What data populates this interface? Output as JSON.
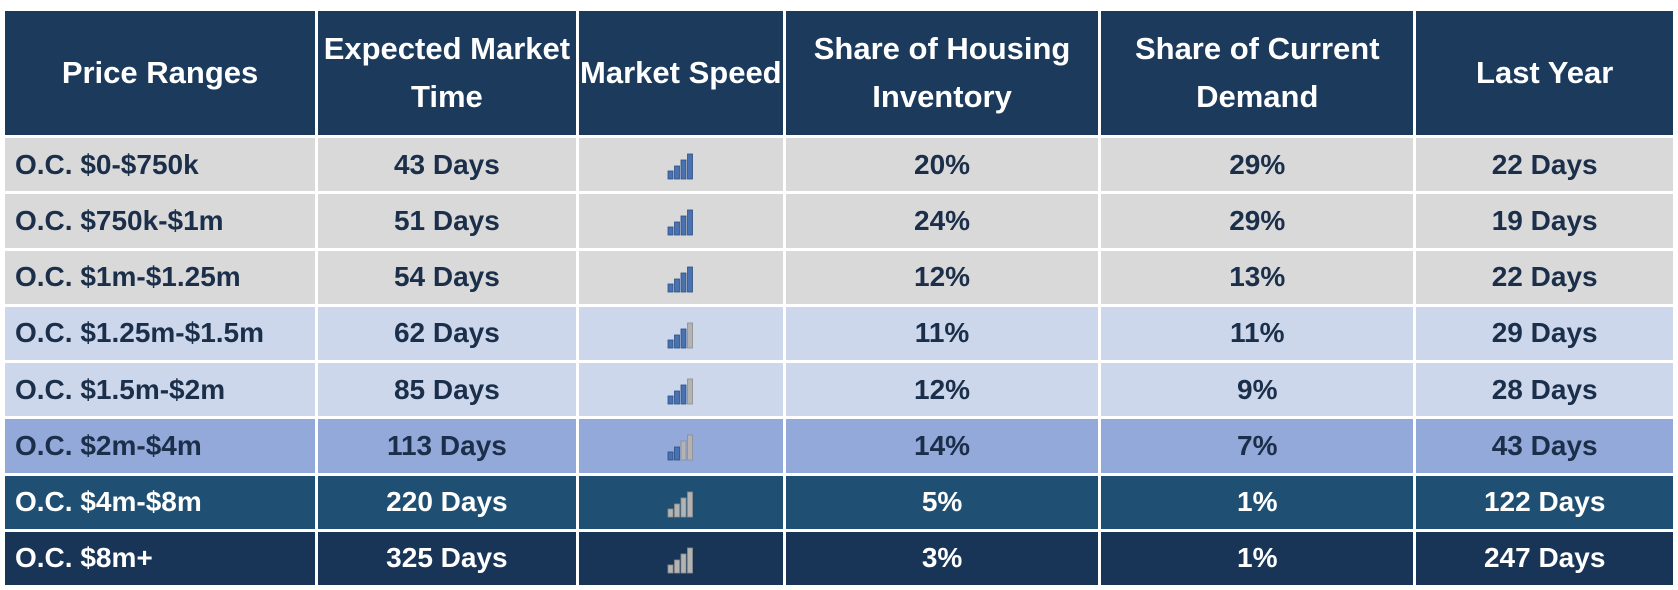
{
  "chart_data": {
    "type": "table",
    "columns": [
      "Price Ranges",
      "Expected Market Time",
      "Market Speed",
      "Share of Housing Inventory",
      "Share of Current Demand",
      "Last Year"
    ],
    "rows": [
      {
        "range": "O.C. $0-$750k",
        "market_time": "43 Days",
        "speed_level": 4,
        "inventory": "20%",
        "demand": "29%",
        "last_year": "22 Days",
        "tone": "light"
      },
      {
        "range": "O.C. $750k-$1m",
        "market_time": "51 Days",
        "speed_level": 4,
        "inventory": "24%",
        "demand": "29%",
        "last_year": "19 Days",
        "tone": "light"
      },
      {
        "range": "O.C. $1m-$1.25m",
        "market_time": "54 Days",
        "speed_level": 4,
        "inventory": "12%",
        "demand": "13%",
        "last_year": "22 Days",
        "tone": "light"
      },
      {
        "range": "O.C. $1.25m-$1.5m",
        "market_time": "62 Days",
        "speed_level": 3,
        "inventory": "11%",
        "demand": "11%",
        "last_year": "29 Days",
        "tone": "pale"
      },
      {
        "range": "O.C. $1.5m-$2m",
        "market_time": "85 Days",
        "speed_level": 3,
        "inventory": "12%",
        "demand": "9%",
        "last_year": "28 Days",
        "tone": "pale"
      },
      {
        "range": "O.C. $2m-$4m",
        "market_time": "113 Days",
        "speed_level": 2,
        "inventory": "14%",
        "demand": "7%",
        "last_year": "43 Days",
        "tone": "mid"
      },
      {
        "range": "O.C. $4m-$8m",
        "market_time": "220 Days",
        "speed_level": 0,
        "inventory": "5%",
        "demand": "1%",
        "last_year": "122 Days",
        "tone": "teal"
      },
      {
        "range": "O.C. $8m+",
        "market_time": "325 Days",
        "speed_level": 0,
        "inventory": "3%",
        "demand": "1%",
        "last_year": "247 Days",
        "tone": "navy"
      }
    ],
    "colors": {
      "header_bg": "#1b3a5c",
      "bar_filled": "#4a72b0",
      "bar_empty": "#b3b3b3"
    },
    "icon": "signal-strength-icon"
  }
}
